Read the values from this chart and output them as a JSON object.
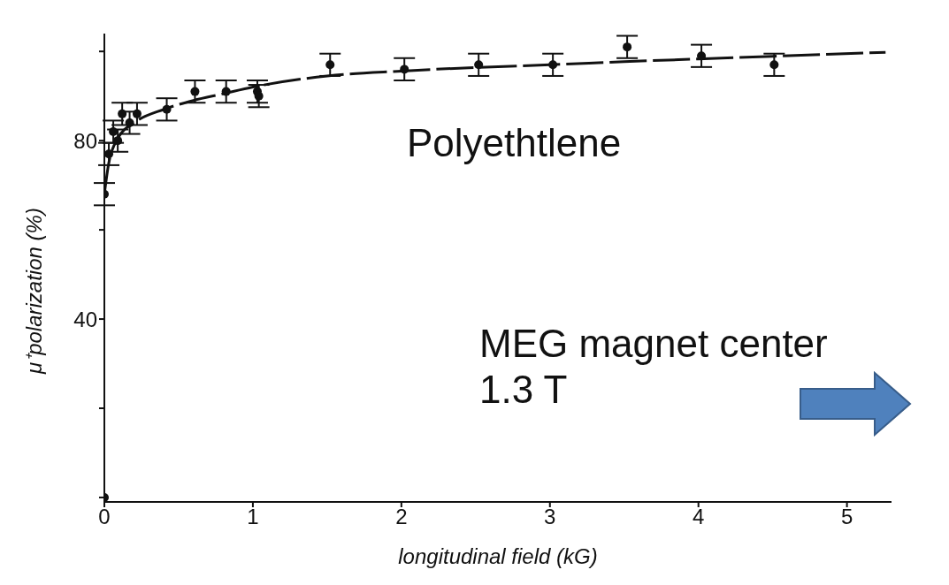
{
  "chart_data": {
    "type": "scatter",
    "xlabel": "longitudinal field (kG)",
    "ylabel": "μ⁺polarization (%)",
    "annotations": [
      "Polyethtlene",
      "MEG magnet center\n1.3 T"
    ],
    "xlim": [
      0,
      5.3
    ],
    "xticks": [
      0,
      1,
      2,
      3,
      4,
      5
    ],
    "ylim": [
      -1,
      104
    ],
    "yticks": [
      {
        "value": 0,
        "label": null
      },
      {
        "value": 20,
        "label": null
      },
      40,
      {
        "value": 60,
        "label": null
      },
      80,
      {
        "value": 100,
        "label": null
      }
    ],
    "grid": false,
    "marker": "circle",
    "series": [
      {
        "type": "scatter",
        "color": "#111111",
        "x": [
          0,
          0,
          0.03,
          0.06,
          0.09,
          0.12,
          0.17,
          0.22,
          0.42,
          0.61,
          0.82,
          1.03,
          1.04,
          1.52,
          2.02,
          2.52,
          3.02,
          3.52,
          4.02,
          4.51
        ],
        "values": [
          0,
          68,
          77,
          82,
          80,
          86,
          84,
          86,
          87,
          91,
          91,
          91,
          90,
          97,
          96,
          97,
          97,
          101,
          99,
          97
        ],
        "errors": [
          null,
          2.5,
          2.5,
          2.5,
          2.5,
          2.5,
          2.5,
          2.5,
          2.5,
          2.5,
          2.5,
          2.5,
          2.5,
          2.5,
          2.5,
          2.5,
          2.5,
          2.5,
          2.5,
          2.5
        ]
      },
      {
        "type": "line",
        "color": "#111111",
        "marker": "none",
        "line_style": "dashed",
        "x": [
          0,
          0.03,
          0.1,
          0.2,
          0.4,
          0.6,
          0.8,
          1,
          1.5,
          2,
          2.5,
          3,
          3.5,
          4,
          4.5,
          5.26
        ],
        "values": [
          68,
          75,
          81,
          84,
          87,
          89,
          90.5,
          92,
          94.5,
          95.6,
          96.4,
          97,
          97.7,
          98.3,
          98.9,
          99.8
        ]
      }
    ]
  }
}
